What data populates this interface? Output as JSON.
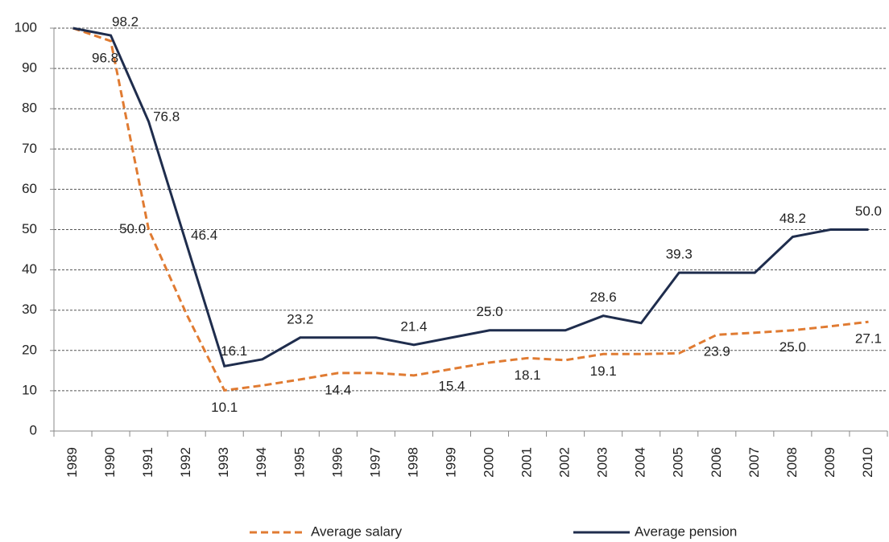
{
  "chart_data": {
    "type": "line",
    "categories": [
      "1989",
      "1990",
      "1991",
      "1992",
      "1993",
      "1994",
      "1995",
      "1996",
      "1997",
      "1998",
      "1999",
      "2000",
      "2001",
      "2002",
      "2003",
      "2004",
      "2005",
      "2006",
      "2007",
      "2008",
      "2009",
      "2010"
    ],
    "series": [
      {
        "name": "Average salary",
        "color": "#e07b32",
        "dash": true,
        "values": [
          100,
          96.8,
          50.0,
          29,
          10.1,
          11.3,
          12.8,
          14.4,
          14.4,
          13.8,
          15.4,
          17.0,
          18.1,
          17.6,
          19.1,
          19.1,
          19.3,
          23.9,
          24.4,
          25.0,
          26.0,
          27.1
        ],
        "value_labels": [
          null,
          "96.8",
          "50.0",
          null,
          "10.1",
          null,
          null,
          "14.4",
          null,
          null,
          "15.4",
          null,
          "18.1",
          null,
          "19.1",
          null,
          null,
          "23.9",
          null,
          "25.0",
          null,
          "27.1"
        ]
      },
      {
        "name": "Average pension",
        "color": "#1f2d4d",
        "dash": false,
        "values": [
          100,
          98.2,
          76.8,
          46.4,
          16.1,
          17.8,
          23.2,
          23.2,
          23.2,
          21.4,
          23.2,
          25.0,
          25.0,
          25.0,
          28.6,
          26.8,
          39.3,
          39.3,
          39.3,
          48.2,
          50.0,
          50.0
        ],
        "value_labels": [
          null,
          "98.2",
          "76.8",
          "46.4",
          "16.1",
          null,
          "23.2",
          null,
          null,
          "21.4",
          null,
          "25.0",
          null,
          null,
          "28.6",
          null,
          "39.3",
          null,
          null,
          "48.2",
          null,
          "50.0"
        ]
      }
    ],
    "ylim": [
      0,
      100
    ],
    "yticks": [
      0,
      10,
      20,
      30,
      40,
      50,
      60,
      70,
      80,
      90,
      100
    ],
    "grid": true,
    "legend": "bottom"
  }
}
